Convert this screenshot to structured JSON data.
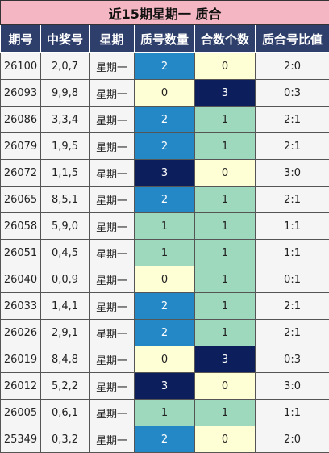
{
  "title": "近15期星期一 质合",
  "headers": [
    "期号",
    "中奖号",
    "星期",
    "质号数量",
    "合数个数",
    "质合号比值"
  ],
  "rows": [
    {
      "issue": "26100",
      "numbers": "2,0,7",
      "weekday": "星期一",
      "prime": "2",
      "composite": "0",
      "ratio": "2:0"
    },
    {
      "issue": "26093",
      "numbers": "9,9,8",
      "weekday": "星期一",
      "prime": "0",
      "composite": "3",
      "ratio": "0:3"
    },
    {
      "issue": "26086",
      "numbers": "3,3,4",
      "weekday": "星期一",
      "prime": "2",
      "composite": "1",
      "ratio": "2:1"
    },
    {
      "issue": "26079",
      "numbers": "1,9,5",
      "weekday": "星期一",
      "prime": "2",
      "composite": "1",
      "ratio": "2:1"
    },
    {
      "issue": "26072",
      "numbers": "1,1,5",
      "weekday": "星期一",
      "prime": "3",
      "composite": "0",
      "ratio": "3:0"
    },
    {
      "issue": "26065",
      "numbers": "8,5,1",
      "weekday": "星期一",
      "prime": "2",
      "composite": "1",
      "ratio": "2:1"
    },
    {
      "issue": "26058",
      "numbers": "5,9,0",
      "weekday": "星期一",
      "prime": "1",
      "composite": "1",
      "ratio": "1:1"
    },
    {
      "issue": "26051",
      "numbers": "0,4,5",
      "weekday": "星期一",
      "prime": "1",
      "composite": "1",
      "ratio": "1:1"
    },
    {
      "issue": "26040",
      "numbers": "0,0,9",
      "weekday": "星期一",
      "prime": "0",
      "composite": "1",
      "ratio": "0:1"
    },
    {
      "issue": "26033",
      "numbers": "1,4,1",
      "weekday": "星期一",
      "prime": "2",
      "composite": "1",
      "ratio": "2:1"
    },
    {
      "issue": "26026",
      "numbers": "2,9,1",
      "weekday": "星期一",
      "prime": "2",
      "composite": "1",
      "ratio": "2:1"
    },
    {
      "issue": "26019",
      "numbers": "8,4,8",
      "weekday": "星期一",
      "prime": "0",
      "composite": "3",
      "ratio": "0:3"
    },
    {
      "issue": "26012",
      "numbers": "5,2,2",
      "weekday": "星期一",
      "prime": "3",
      "composite": "0",
      "ratio": "3:0"
    },
    {
      "issue": "26005",
      "numbers": "0,6,1",
      "weekday": "星期一",
      "prime": "1",
      "composite": "1",
      "ratio": "1:1"
    },
    {
      "issue": "25349",
      "numbers": "0,3,2",
      "weekday": "星期一",
      "prime": "2",
      "composite": "0",
      "ratio": "2:0"
    }
  ],
  "colors": {
    "title_bg": "#f4b6c2",
    "header_bg": "#2f3f6b",
    "level_0": "#ffffd6",
    "level_1": "#9fd9bd",
    "level_2": "#2588c6",
    "level_3": "#0c1f5c"
  }
}
